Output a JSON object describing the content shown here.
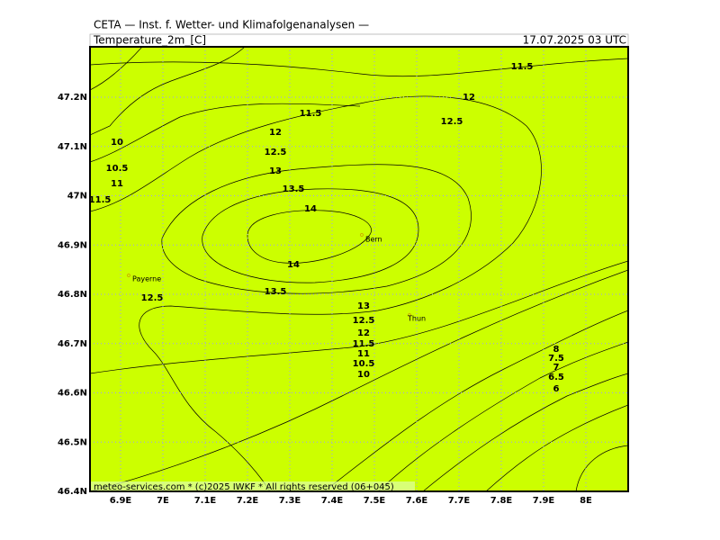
{
  "header": {
    "source": "CETA — Inst. f. Wetter- und Klimafolgenanalysen —",
    "variable": "Temperature_2m_[C]",
    "valid_time": "17.07.2025 03 UTC"
  },
  "axes": {
    "x_labels": [
      "6.9E",
      "7E",
      "7.1E",
      "7.2E",
      "7.3E",
      "7.4E",
      "7.5E",
      "7.6E",
      "7.7E",
      "7.8E",
      "7.9E",
      "8E"
    ],
    "y_labels": [
      "47.2N",
      "47.1N",
      "47N",
      "46.9N",
      "46.8N",
      "46.7N",
      "46.6N",
      "46.5N",
      "46.4N"
    ]
  },
  "places": [
    "Bern",
    "Payerne",
    "Thun"
  ],
  "contour_labels": [
    "11.5",
    "12",
    "11.5",
    "12.5",
    "12",
    "10",
    "12.5",
    "13",
    "10.5",
    "11",
    "13.5",
    "11.5",
    "14",
    "14",
    "13.5",
    "12.5",
    "13",
    "12.5",
    "12",
    "11.5",
    "11",
    "10.5",
    "10",
    "8",
    "7.5",
    "7",
    "6.5",
    "6"
  ],
  "footer": "meteo-services.com * (c)2025 IWKF * All rights reserved (06+045)"
}
